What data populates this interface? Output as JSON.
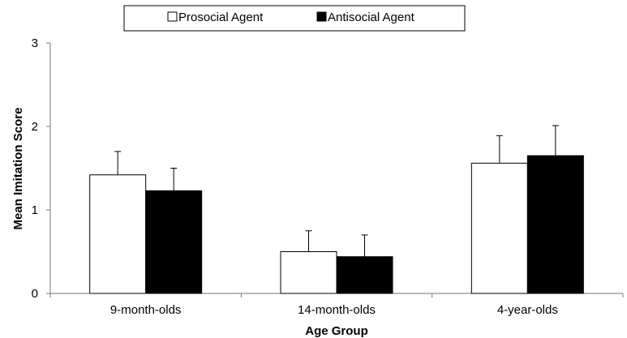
{
  "chart_data": {
    "type": "bar",
    "xlabel": "Age Group",
    "ylabel": "Mean Imitation Score",
    "ylim": [
      0,
      3
    ],
    "yticks": [
      0,
      1,
      2,
      3
    ],
    "categories": [
      "9-month-olds",
      "14-month-olds",
      "4-year-olds"
    ],
    "series": [
      {
        "name": "Prosocial Agent",
        "values": [
          1.42,
          0.5,
          1.56
        ],
        "errors": [
          0.28,
          0.25,
          0.33
        ],
        "color": "#ffffff"
      },
      {
        "name": "Antisocial Agent",
        "values": [
          1.23,
          0.44,
          1.65
        ],
        "errors": [
          0.27,
          0.26,
          0.36
        ],
        "color": "#000000"
      }
    ],
    "grid": false,
    "legend_position": "top-center"
  }
}
